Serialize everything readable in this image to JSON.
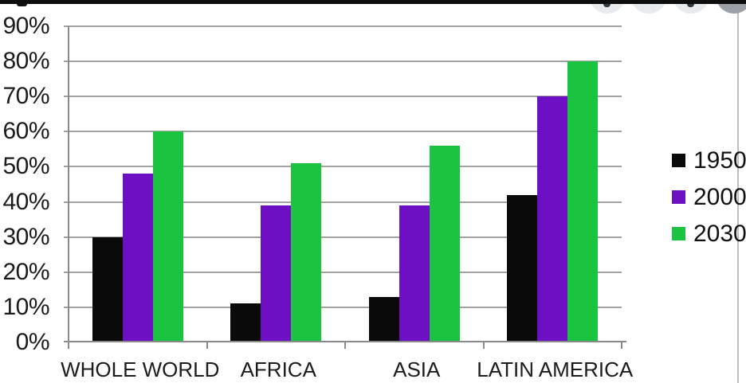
{
  "window": {
    "top_bar_color": "#0d0d0d",
    "divider_color": "#bcc0c4"
  },
  "overlay_toolbar": {
    "buttons": [
      {
        "name": "toolbar-button-1",
        "color": "#e8ebee",
        "dot": true
      },
      {
        "name": "toolbar-button-2",
        "color": "#e8ebee",
        "dot": false
      },
      {
        "name": "toolbar-button-3",
        "color": "#e8ebee",
        "dot": true
      },
      {
        "name": "toolbar-button-4",
        "color": "#9ca1a7",
        "dot": false
      }
    ]
  },
  "chart_data": {
    "type": "bar",
    "title": "",
    "xlabel": "",
    "ylabel": "",
    "categories": [
      "WHOLE WORLD",
      "AFRICA",
      "ASIA",
      "LATIN AMERICA"
    ],
    "series": [
      {
        "name": "1950",
        "color": "#0a0a0a",
        "values": [
          30,
          11,
          13,
          42
        ]
      },
      {
        "name": "2000",
        "color": "#6d10c4",
        "values": [
          48,
          39,
          39,
          70
        ]
      },
      {
        "name": "2030",
        "color": "#1bc440",
        "values": [
          60,
          51,
          56,
          80
        ]
      }
    ],
    "ylim": [
      0,
      90
    ],
    "y_tick_step": 10,
    "y_tick_labels": [
      "0%",
      "10%",
      "20%",
      "30%",
      "40%",
      "50%",
      "60%",
      "70%",
      "80%",
      "90%"
    ],
    "grid": true,
    "legend_position": "right"
  }
}
